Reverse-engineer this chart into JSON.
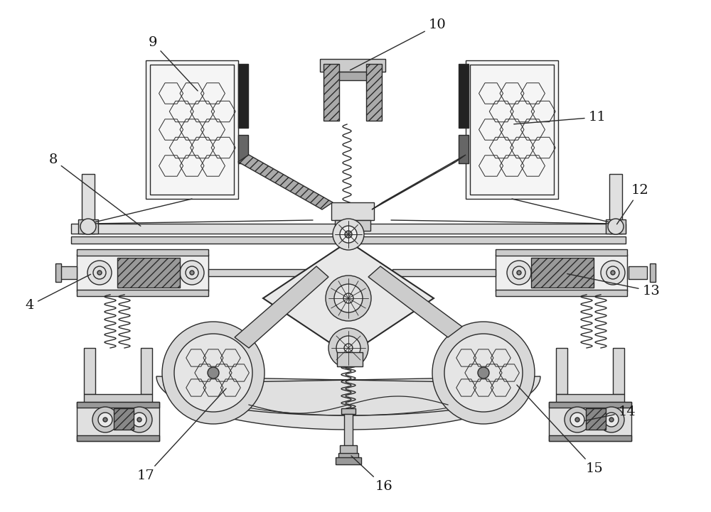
{
  "bg_color": "#ffffff",
  "line_color": "#2a2a2a",
  "lw": 1.0,
  "label_fontsize": 14,
  "fig_w": 10.0,
  "fig_h": 7.21
}
